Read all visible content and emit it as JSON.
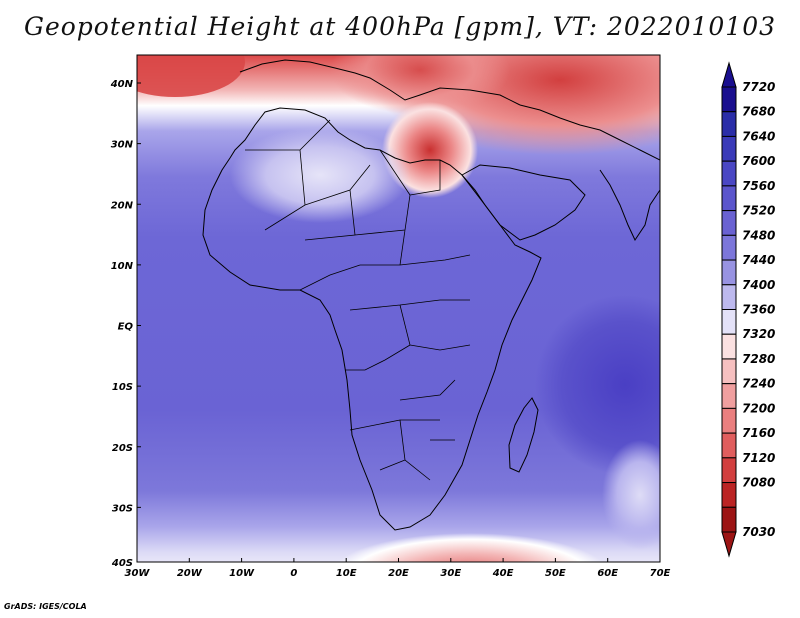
{
  "title": "Geopotential Height at 400hPa [gpm], VT: 2022010103",
  "credit": "GrADS: IGES/COLA",
  "map": {
    "lon_ticks": [
      "30W",
      "20W",
      "10W",
      "0",
      "10E",
      "20E",
      "30E",
      "40E",
      "50E",
      "60E",
      "70E"
    ],
    "lat_ticks": [
      "40N",
      "30N",
      "20N",
      "10N",
      "EQ",
      "10S",
      "20S",
      "30S",
      "40S"
    ]
  },
  "colorbar": {
    "levels": [
      "7720",
      "7680",
      "7640",
      "7600",
      "7560",
      "7520",
      "7480",
      "7440",
      "7400",
      "7360",
      "7320",
      "7280",
      "7240",
      "7200",
      "7160",
      "7120",
      "7080",
      "7030"
    ],
    "colors": [
      "#1a0f8f",
      "#2a2da8",
      "#3a3ab8",
      "#4a47c4",
      "#5b55cc",
      "#6a62d2",
      "#7c76da",
      "#9893e2",
      "#bdb9ee",
      "#e4e2f8",
      "#fbe1e1",
      "#f6c0c0",
      "#f09f9f",
      "#ea7f7f",
      "#e05e5e",
      "#d23f3f",
      "#bb2424",
      "#9c1414"
    ]
  }
}
